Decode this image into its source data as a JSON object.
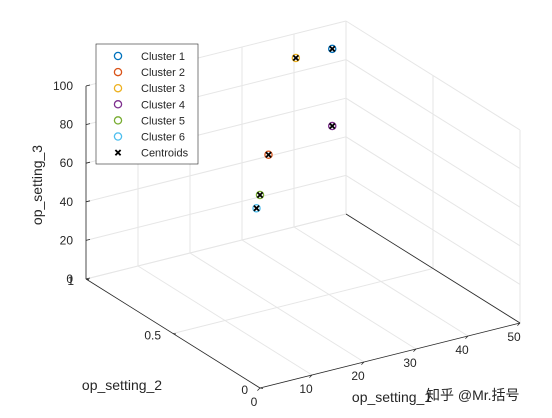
{
  "chart_data": {
    "type": "scatter",
    "view": "3d",
    "xlabel": "op_setting_1",
    "ylabel": "op_setting_2",
    "zlabel": "op_setting_3",
    "xlim": [
      0,
      50
    ],
    "ylim": [
      0,
      1
    ],
    "zlim": [
      0,
      100
    ],
    "xticks": [
      "0",
      "10",
      "20",
      "30",
      "40",
      "50"
    ],
    "yticks": [
      "0",
      "0.5",
      "1"
    ],
    "zticks": [
      "0",
      "20",
      "40",
      "60",
      "80",
      "100"
    ],
    "grid": true,
    "legend_position": "top-left",
    "series": [
      {
        "name": "Cluster 1",
        "color": "#0072bd",
        "marker": "circle",
        "points": [
          [
            42,
            0.84,
            100
          ]
        ]
      },
      {
        "name": "Cluster 2",
        "color": "#d95319",
        "marker": "circle",
        "points": [
          [
            10,
            0.25,
            100
          ]
        ]
      },
      {
        "name": "Cluster 3",
        "color": "#edb120",
        "marker": "circle",
        "points": [
          [
            35,
            0.84,
            100
          ]
        ]
      },
      {
        "name": "Cluster 4",
        "color": "#7e2f8e",
        "marker": "circle",
        "points": [
          [
            42,
            0.84,
            60
          ]
        ]
      },
      {
        "name": "Cluster 5",
        "color": "#77ac30",
        "marker": "circle",
        "points": [
          [
            0,
            0,
            100
          ]
        ]
      },
      {
        "name": "Cluster 6",
        "color": "#4dbeee",
        "marker": "circle",
        "points": [
          [
            0,
            0.02,
            92
          ]
        ]
      },
      {
        "name": "Centroids",
        "color": "#000000",
        "marker": "x",
        "points": [
          [
            42,
            0.84,
            100
          ],
          [
            10,
            0.25,
            100
          ],
          [
            35,
            0.84,
            100
          ],
          [
            42,
            0.84,
            60
          ],
          [
            0,
            0,
            100
          ],
          [
            0,
            0.02,
            92
          ]
        ]
      }
    ]
  },
  "watermark": "知乎 @Mr.括号"
}
